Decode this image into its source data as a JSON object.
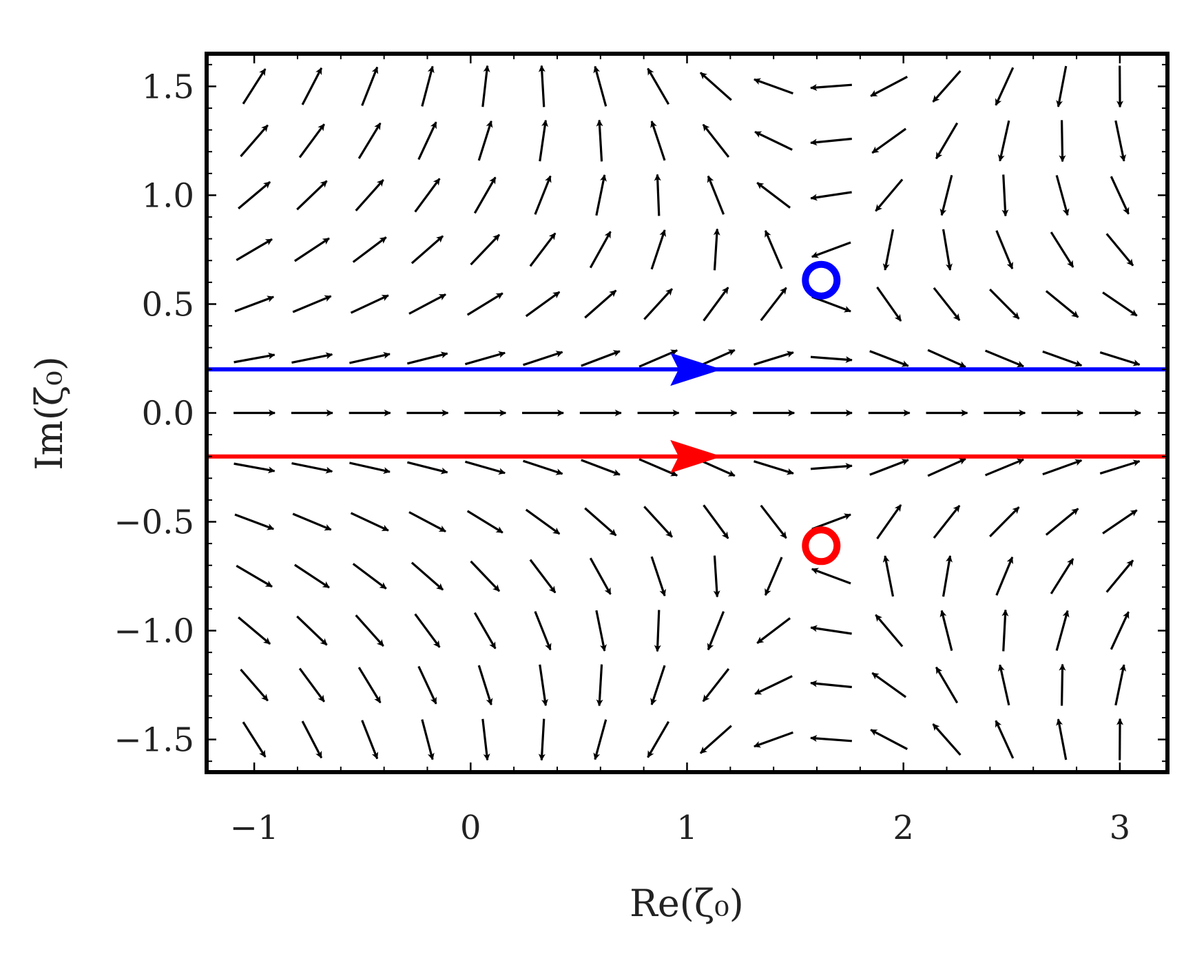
{
  "chart_data": {
    "type": "vector_field",
    "xlabel": "Re(ζ₀)",
    "ylabel": "Im(ζ₀)",
    "xlim": [
      -1.22,
      3.22
    ],
    "ylim": [
      -1.65,
      1.65
    ],
    "xticks": [
      -1,
      0,
      1,
      2,
      3
    ],
    "yticks": [
      -1.5,
      -1.0,
      -0.5,
      0.0,
      0.5,
      1.0,
      1.5
    ],
    "xtick_labels": [
      "−1",
      "0",
      "1",
      "2",
      "3"
    ],
    "ytick_labels": [
      "−1.5",
      "−1.0",
      "−0.5",
      "0.0",
      "0.5",
      "1.0",
      "1.5"
    ],
    "field": {
      "description_of_marks": "black arrows sampled on a regular grid",
      "x_range": [
        -1.0,
        3.0
      ],
      "y_range": [
        -1.5,
        1.5
      ],
      "nx": 16,
      "ny": 13,
      "color": "#000000"
    },
    "contours": [
      {
        "y": 0.2,
        "color": "#0000ff",
        "arrow_x": 1.05,
        "direction": "right"
      },
      {
        "y": -0.2,
        "color": "#ff0000",
        "arrow_x": 1.05,
        "direction": "right"
      }
    ],
    "points": [
      {
        "x": 1.62,
        "y": 0.61,
        "color": "#0000ff",
        "marker": "open-circle"
      },
      {
        "x": 1.62,
        "y": -0.61,
        "color": "#ff0000",
        "marker": "open-circle"
      }
    ],
    "grid": false,
    "legend": "none"
  }
}
